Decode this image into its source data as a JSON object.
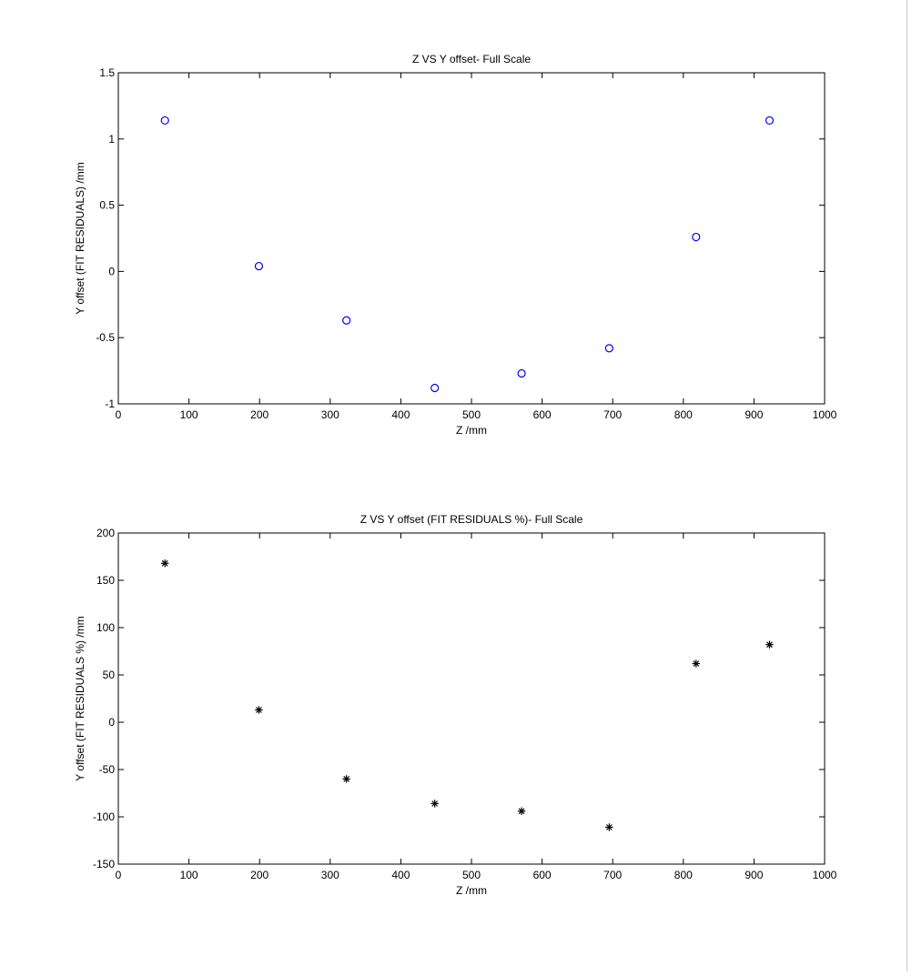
{
  "figure": {
    "background": "#ffffff",
    "axes_color": "#000000"
  },
  "chart_data": [
    {
      "type": "scatter",
      "title": "Z VS Y offset- Full Scale",
      "xlabel": "Z /mm",
      "ylabel": "Y offset (FIT RESIDUALS) /mm",
      "xlim": [
        0,
        1000
      ],
      "ylim": [
        -1,
        1.5
      ],
      "xticks": [
        0,
        100,
        200,
        300,
        400,
        500,
        600,
        700,
        800,
        900,
        1000
      ],
      "yticks": [
        -1,
        -0.5,
        0,
        0.5,
        1,
        1.5
      ],
      "grid": false,
      "marker": "circle",
      "color": "#0000ff",
      "series": [
        {
          "x": [
            66,
            199,
            323,
            448,
            571,
            695,
            818,
            922
          ],
          "y": [
            1.14,
            0.04,
            -0.37,
            -0.88,
            -0.77,
            -0.58,
            0.26,
            1.14
          ]
        }
      ]
    },
    {
      "type": "scatter",
      "title": "Z VS Y offset (FIT RESIDUALS %)- Full Scale",
      "xlabel": "Z /mm",
      "ylabel": "Y offset (FIT RESIDUALS %) /mm",
      "xlim": [
        0,
        1000
      ],
      "ylim": [
        -150,
        200
      ],
      "xticks": [
        0,
        100,
        200,
        300,
        400,
        500,
        600,
        700,
        800,
        900,
        1000
      ],
      "yticks": [
        -150,
        -100,
        -50,
        0,
        50,
        100,
        150,
        200
      ],
      "grid": false,
      "marker": "asterisk",
      "color": "#000000",
      "series": [
        {
          "x": [
            66,
            199,
            323,
            448,
            571,
            695,
            818,
            922
          ],
          "y": [
            168,
            13,
            -60,
            -86,
            -94,
            -111,
            62,
            82
          ]
        }
      ]
    }
  ]
}
